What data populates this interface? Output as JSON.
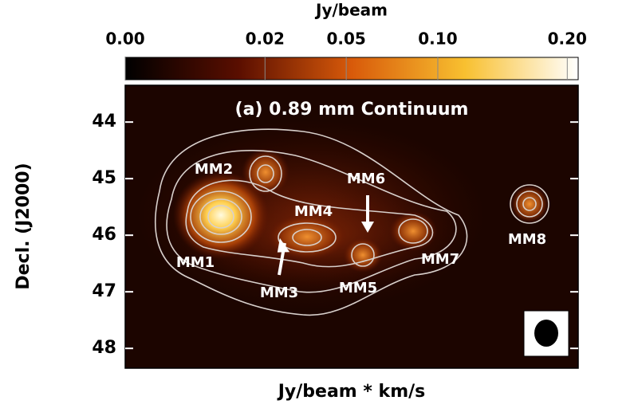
{
  "chart_data": {
    "type": "image",
    "colorbar_label": "Jy/beam",
    "color_scale": "sqrt",
    "clim": [
      0,
      0.21
    ],
    "cticks": [
      {
        "value": 0,
        "label": "0.00"
      },
      {
        "value": 0.02,
        "label": "0.02"
      },
      {
        "value": 0.05,
        "label": "0.05"
      },
      {
        "value": 0.1,
        "label": "0.10"
      },
      {
        "value": 0.2,
        "label": "0.20"
      }
    ],
    "ylabel": "Decl. (J2000)",
    "xlabel": "Jy/beam * km/s",
    "ylim": [
      48.35,
      43.35
    ],
    "yticks": [
      44,
      45,
      46,
      47,
      48
    ],
    "panel_title": "(a) 0.89 mm Continuum",
    "sources": [
      "MM1",
      "MM2",
      "MM3",
      "MM4",
      "MM5",
      "MM6",
      "MM7",
      "MM8"
    ]
  }
}
